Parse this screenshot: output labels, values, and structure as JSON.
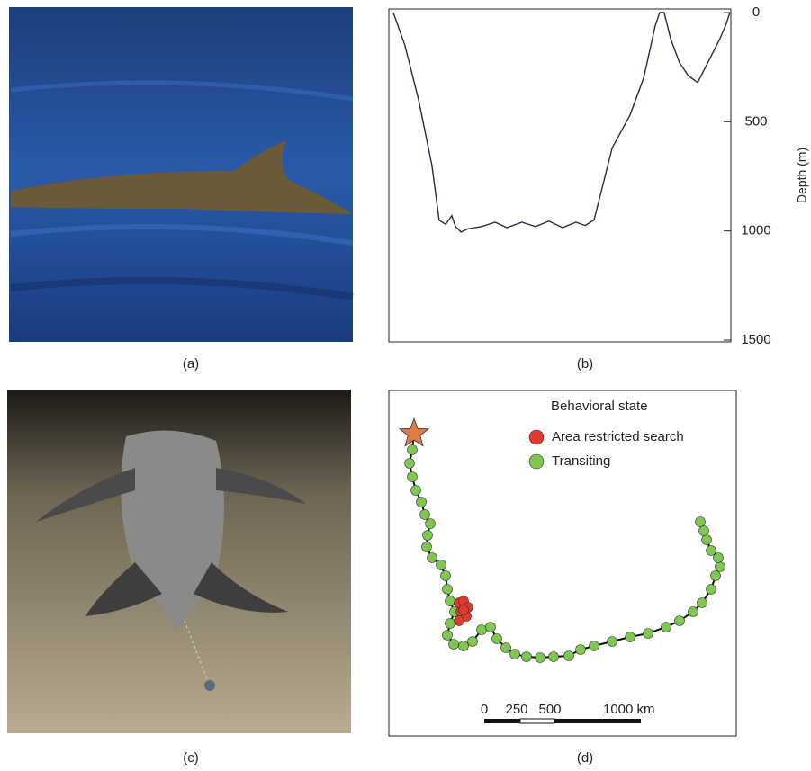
{
  "captions": [
    "(a)",
    "(b)",
    "(c)",
    "(d)"
  ],
  "chart_data": [
    {
      "type": "line",
      "ylabel": "Depth (m)",
      "color": "#2a2a44",
      "x": [
        1.3,
        4.7,
        8.7,
        12.6,
        14.7,
        16.6,
        18.4,
        19.5,
        21.1,
        23.2,
        27.1,
        31.1,
        34.5,
        38.9,
        42.9,
        46.8,
        50.8,
        54.7,
        57.4,
        60.0,
        65.3,
        70.5,
        74.5,
        77.9,
        79.2,
        80.5,
        82.4,
        85.0,
        87.6,
        90.3,
        94.2,
        96.8,
        98.7,
        99.7
      ],
      "values": [
        0,
        150,
        400,
        700,
        950,
        970,
        930,
        980,
        1005,
        990,
        980,
        960,
        985,
        960,
        980,
        955,
        985,
        960,
        975,
        950,
        620,
        470,
        300,
        60,
        0,
        0,
        120,
        230,
        290,
        320,
        200,
        120,
        50,
        0
      ],
      "xlim": [
        0,
        100
      ],
      "ylim": [
        1500,
        0
      ],
      "yticks": [
        0,
        500,
        1000,
        1500
      ]
    },
    {
      "type": "scatter",
      "legend_title": "Behavioral state",
      "xlim": [
        0,
        386
      ],
      "ylim": [
        384,
        0
      ],
      "start": [
        28,
        48
      ],
      "start_color": "#e07b45",
      "scale_labels": [
        "0",
        "250",
        "500",
        "1000 km"
      ],
      "series": [
        {
          "name": "Area restricted search",
          "color": "#e03a2e",
          "x": [
            78,
            83,
            88,
            80,
            86,
            78,
            83
          ],
          "y": [
            236,
            234,
            241,
            246,
            251,
            256,
            244
          ]
        },
        {
          "name": "Transiting",
          "color": "#7ec850",
          "x": [
            26,
            23,
            26,
            30,
            36,
            40,
            46,
            43,
            42,
            48,
            58,
            63,
            65,
            68,
            73,
            68,
            65,
            72,
            83,
            93,
            103,
            113,
            120,
            130,
            140,
            153,
            168,
            183,
            200,
            213,
            228,
            248,
            268,
            288,
            308,
            323,
            338,
            348,
            358,
            363,
            368,
            366,
            358,
            353,
            350,
            346
          ],
          "y": [
            66,
            81,
            96,
            111,
            124,
            138,
            148,
            161,
            174,
            186,
            194,
            206,
            221,
            234,
            246,
            259,
            272,
            282,
            284,
            279,
            266,
            263,
            276,
            286,
            293,
            296,
            297,
            296,
            295,
            288,
            284,
            279,
            274,
            270,
            263,
            256,
            246,
            236,
            221,
            206,
            196,
            186,
            178,
            166,
            156,
            146
          ]
        }
      ]
    }
  ]
}
